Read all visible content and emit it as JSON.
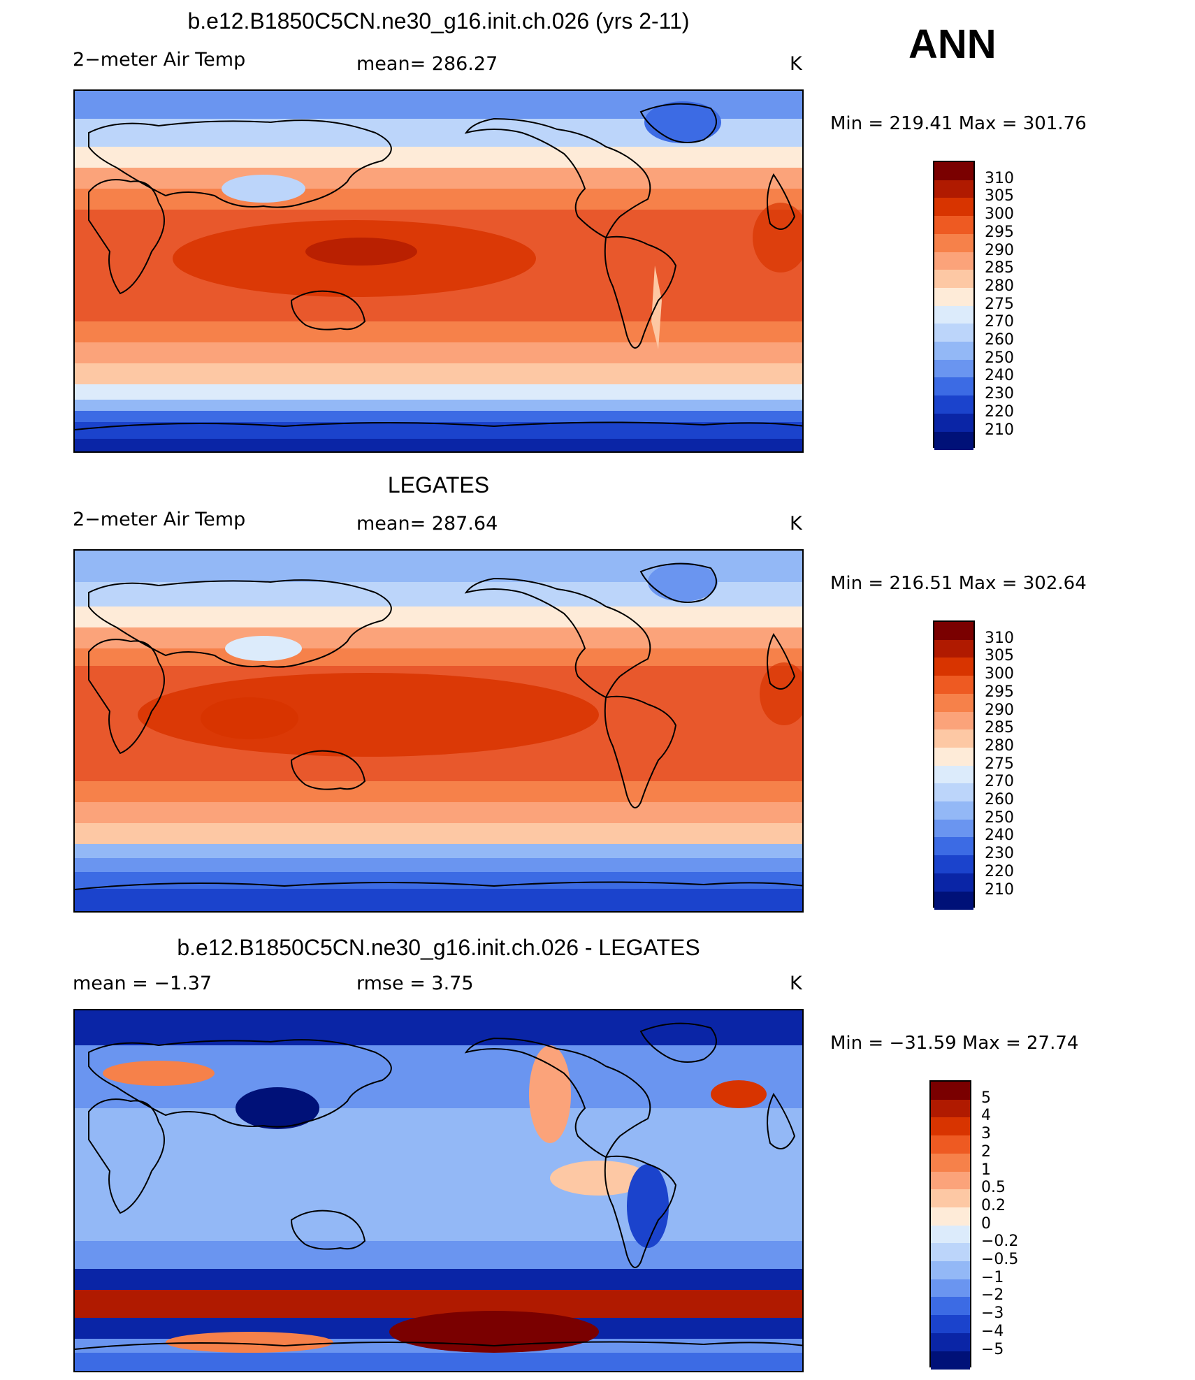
{
  "season": "ANN",
  "units": "K",
  "panels": [
    {
      "title": "b.e12.B1850C5CN.ne30_g16.init.ch.026 (yrs 2-11)",
      "left_label": "2−meter Air Temp",
      "center_label": "mean=  286.27",
      "right_label": "K",
      "min_max": "Min  =  219.41  Max  =  301.76",
      "colorbar": {
        "labels": [
          "310",
          "305",
          "300",
          "295",
          "290",
          "285",
          "280",
          "275",
          "270",
          "260",
          "250",
          "240",
          "230",
          "220",
          "210"
        ],
        "colors": [
          "#7a0000",
          "#b01a00",
          "#d83400",
          "#ee5a22",
          "#f6814a",
          "#fba37a",
          "#fdc8a4",
          "#feebd8",
          "#dcebfb",
          "#bcd5fa",
          "#93b8f6",
          "#6a95f0",
          "#3c6be4",
          "#1b43cc",
          "#0a25a6",
          "#001178"
        ]
      }
    },
    {
      "title": "LEGATES",
      "left_label": "2−meter Air Temp",
      "center_label": "mean=  287.64",
      "right_label": "K",
      "min_max": "Min  =  216.51  Max  =  302.64",
      "colorbar": {
        "labels": [
          "310",
          "305",
          "300",
          "295",
          "290",
          "285",
          "280",
          "275",
          "270",
          "260",
          "250",
          "240",
          "230",
          "220",
          "210"
        ],
        "colors": [
          "#7a0000",
          "#b01a00",
          "#d83400",
          "#ee5a22",
          "#f6814a",
          "#fba37a",
          "#fdc8a4",
          "#feebd8",
          "#dcebfb",
          "#bcd5fa",
          "#93b8f6",
          "#6a95f0",
          "#3c6be4",
          "#1b43cc",
          "#0a25a6",
          "#001178"
        ]
      }
    },
    {
      "title": "b.e12.B1850C5CN.ne30_g16.init.ch.026 - LEGATES",
      "left_label": "mean  =    −1.37",
      "center_label": "rmse  =     3.75",
      "right_label": "K",
      "min_max": "Min  =  −31.59  Max  =    27.74",
      "colorbar": {
        "labels": [
          "5",
          "4",
          "3",
          "2",
          "1",
          "0.5",
          "0.2",
          "0",
          "−0.2",
          "−0.5",
          "−1",
          "−2",
          "−3",
          "−4",
          "−5"
        ],
        "colors": [
          "#7a0000",
          "#b01a00",
          "#d83400",
          "#ee5a22",
          "#f6814a",
          "#fba37a",
          "#fdc8a4",
          "#feebd8",
          "#dcebfb",
          "#bcd5fa",
          "#93b8f6",
          "#6a95f0",
          "#3c6be4",
          "#1b43cc",
          "#0a25a6",
          "#001178"
        ]
      }
    }
  ]
}
